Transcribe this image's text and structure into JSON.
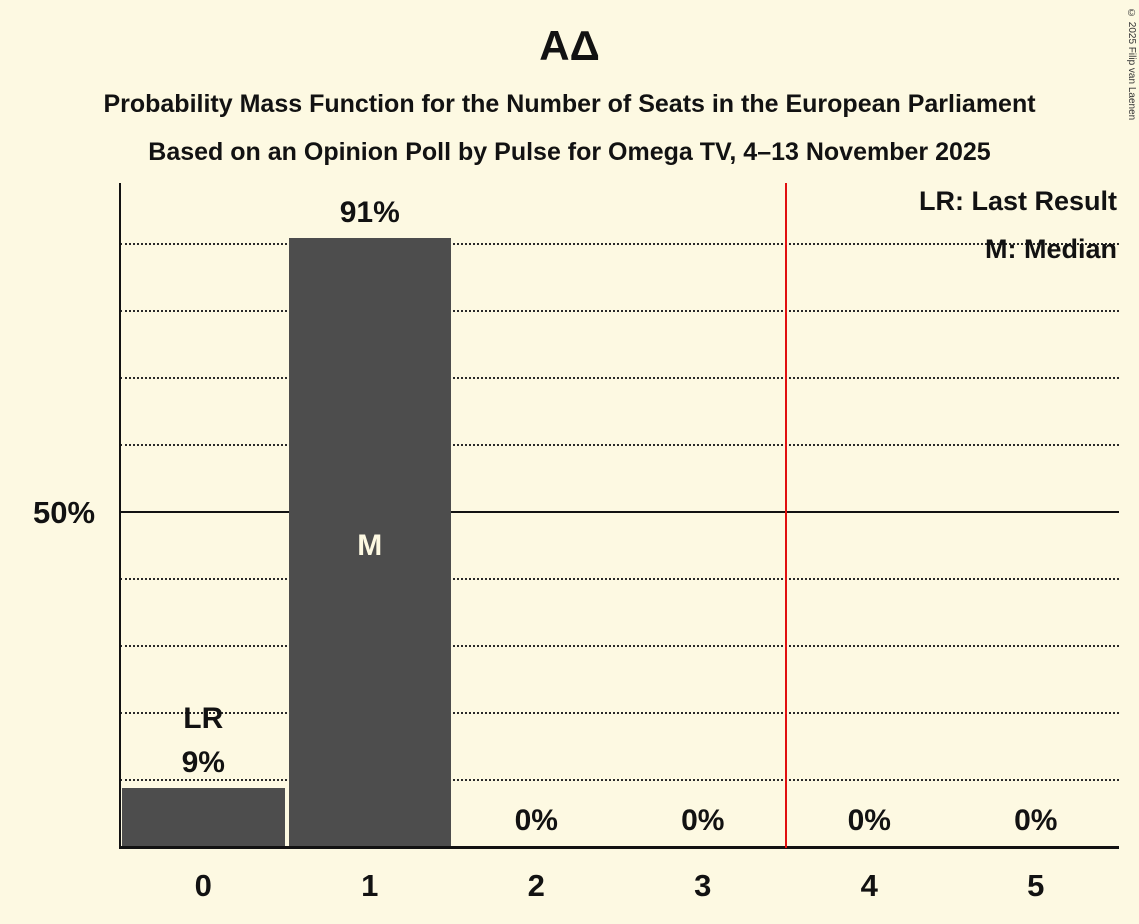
{
  "header": {
    "title": "ΑΔ",
    "subtitle1": "Probability Mass Function for the Number of Seats in the European Parliament",
    "subtitle2": "Based on an Opinion Poll by Pulse for Omega TV, 4–13 November 2025"
  },
  "legend": {
    "lr": "LR: Last Result",
    "m": "M: Median"
  },
  "copyright": "© 2025 Filip van Laenen",
  "chart_data": {
    "type": "bar",
    "title": "ΑΔ",
    "categories": [
      "0",
      "1",
      "2",
      "3",
      "4",
      "5"
    ],
    "values": [
      9,
      91,
      0,
      0,
      0,
      0
    ],
    "value_labels": [
      "9%",
      "91%",
      "0%",
      "0%",
      "0%",
      "0%"
    ],
    "ylabel": "50%",
    "ylim": [
      0,
      100
    ],
    "gridlines_percent": [
      10,
      20,
      30,
      40,
      50,
      60,
      70,
      80,
      90
    ],
    "solid_line_percent": 50,
    "median_category_index": 1,
    "median_marker": "M",
    "last_result_category_index": 0,
    "last_result_marker": "LR",
    "red_line_between": 3.5,
    "colors": {
      "background": "#fdf9e2",
      "bar": "#4d4d4d",
      "red_line": "#e01010",
      "text": "#121212",
      "median_text": "#fdf9e2"
    }
  }
}
